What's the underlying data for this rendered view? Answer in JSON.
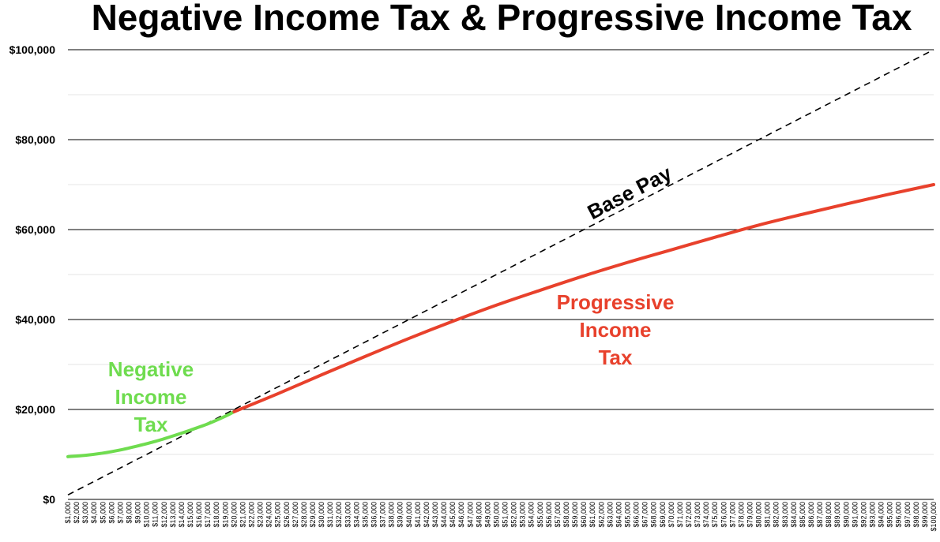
{
  "chart_data": {
    "type": "line",
    "title": "Negative Income Tax & Progressive Income Tax",
    "xlabel": "",
    "ylabel": "",
    "x_range": [
      1000,
      100000
    ],
    "x_step": 1000,
    "x_tick_prefix": "$",
    "ylim": [
      0,
      100000
    ],
    "y_ticks": [
      "$0",
      "$20,000",
      "$40,000",
      "$60,000",
      "$80,000",
      "$100,000"
    ],
    "y_tick_values": [
      0,
      20000,
      40000,
      60000,
      80000,
      100000
    ],
    "y_minor_gridlines": [
      10000,
      30000,
      50000,
      70000,
      90000
    ],
    "grid": true,
    "series": [
      {
        "name": "Base Pay",
        "color": "#000000",
        "style": "dashed",
        "x": [
          1000,
          100000
        ],
        "values": [
          1000,
          100000
        ]
      },
      {
        "name": "Negative Income Tax",
        "color": "#6fdc4f",
        "style": "solid",
        "x": [
          1000,
          3000,
          5000,
          7000,
          9000,
          11000,
          13000,
          15000,
          17000,
          19000,
          20000
        ],
        "values": [
          9500,
          9800,
          10300,
          11000,
          11900,
          12900,
          14100,
          15400,
          16800,
          18500,
          19500
        ]
      },
      {
        "name": "Progressive Income Tax",
        "color": "#e8412c",
        "style": "solid",
        "x": [
          20000,
          25000,
          30000,
          35000,
          40000,
          45000,
          50000,
          55000,
          60000,
          65000,
          70000,
          75000,
          80000,
          85000,
          90000,
          95000,
          100000
        ],
        "values": [
          19500,
          23500,
          27700,
          31800,
          35800,
          39600,
          43200,
          46500,
          49700,
          52700,
          55500,
          58300,
          61000,
          63400,
          65700,
          67900,
          70000
        ]
      }
    ],
    "annotations": [
      {
        "text": "Base Pay",
        "color": "#000000"
      },
      {
        "text": "Progressive Income Tax",
        "lines": [
          "Progressive",
          "Income",
          "Tax"
        ],
        "color": "#e8412c"
      },
      {
        "text": "Negative Income Tax",
        "lines": [
          "Negative",
          "Income",
          "Tax"
        ],
        "color": "#6fdc4f"
      }
    ]
  }
}
